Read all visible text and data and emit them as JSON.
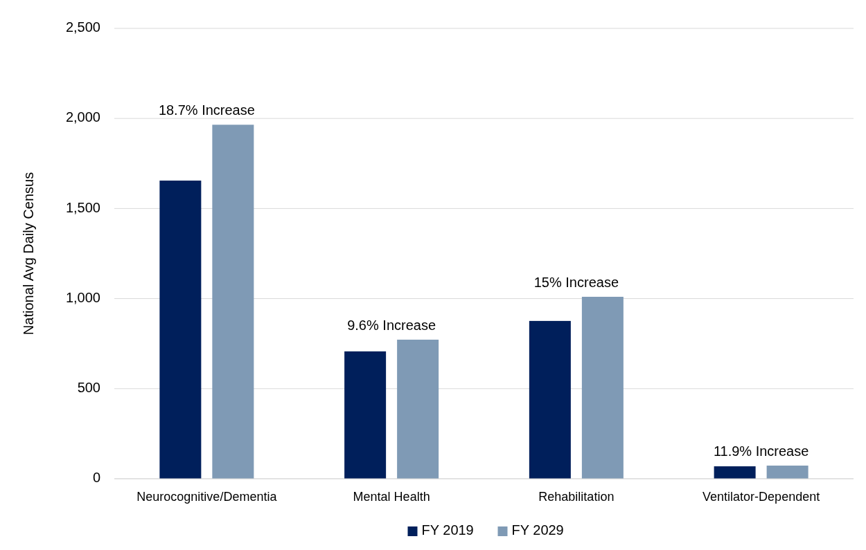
{
  "chart_data": {
    "type": "bar",
    "ylabel": "National Avg Daily Census",
    "categories": [
      "Neurocognitive/Dementia",
      "Mental Health",
      "Rehabilitation",
      "Ventilator-Dependent"
    ],
    "series": [
      {
        "name": "FY 2019",
        "color": "#001f5b",
        "values": [
          1655,
          707,
          876,
          69
        ]
      },
      {
        "name": "FY 2029",
        "color": "#7f9ab5",
        "values": [
          1965,
          772,
          1010,
          73
        ]
      }
    ],
    "ylim": [
      0,
      2500
    ],
    "yticks": [
      {
        "value": 0,
        "label": "0"
      },
      {
        "value": 500,
        "label": "500"
      },
      {
        "value": 1000,
        "label": "1,000"
      },
      {
        "value": 1500,
        "label": "1,500"
      },
      {
        "value": 2000,
        "label": "2,000"
      },
      {
        "value": 2500,
        "label": "2,500"
      }
    ],
    "grid": "y",
    "legend": "bottom",
    "annotations": [
      "18.7% Increase",
      "9.6% Increase",
      "15% Increase",
      "11.9% Increase"
    ]
  }
}
